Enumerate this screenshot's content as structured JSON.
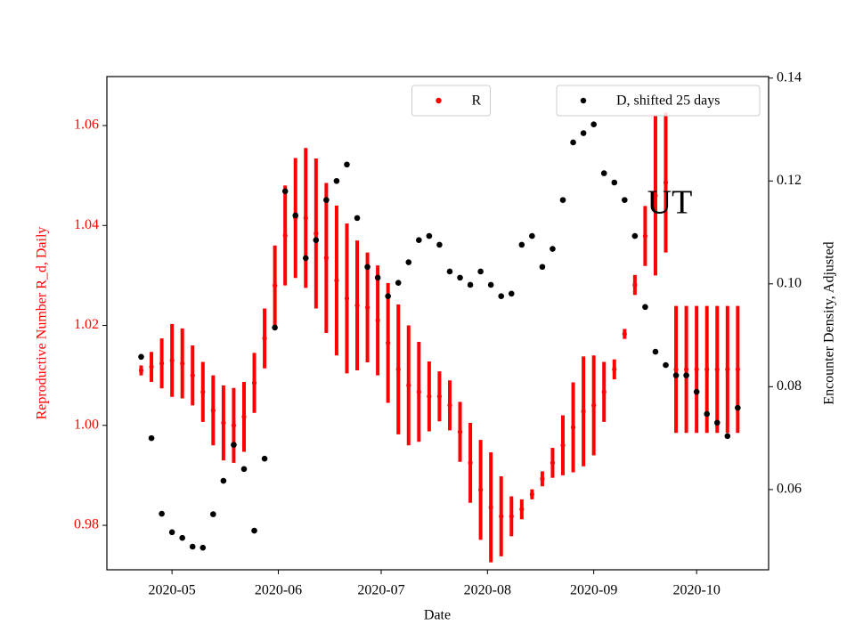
{
  "chart_data": {
    "type": "errorbar_scatter",
    "annotation": "UT",
    "xlabel": "Date",
    "ylabel": "Reproductive Number R_d, Daily",
    "y2label": "Encounter Density, Adjusted",
    "xlim": [
      "2020-04-12",
      "2020-10-22"
    ],
    "xticks": [
      {
        "value": "2020-05-01",
        "label": "2020-05"
      },
      {
        "value": "2020-06-01",
        "label": "2020-06"
      },
      {
        "value": "2020-07-01",
        "label": "2020-07"
      },
      {
        "value": "2020-08-01",
        "label": "2020-08"
      },
      {
        "value": "2020-09-01",
        "label": "2020-09"
      },
      {
        "value": "2020-10-01",
        "label": "2020-10"
      }
    ],
    "ylim": [
      0.9711,
      1.0698
    ],
    "yticks": [
      0.98,
      {
        "value": 1,
        "label": "1.00"
      },
      1.02,
      1.04,
      1.06
    ],
    "y2lim": [
      0.0444,
      0.1403
    ],
    "y2ticks": [
      0.06,
      0.08,
      {
        "value": 0.1,
        "label": "0.10"
      },
      0.12,
      0.14
    ],
    "legend_loc": "upper center",
    "legend2_loc": "upper right",
    "x": [
      "2020-04-22",
      "2020-04-25",
      "2020-04-28",
      "2020-05-01",
      "2020-05-04",
      "2020-05-07",
      "2020-05-10",
      "2020-05-13",
      "2020-05-16",
      "2020-05-19",
      "2020-05-22",
      "2020-05-25",
      "2020-05-28",
      "2020-05-31",
      "2020-06-03",
      "2020-06-06",
      "2020-06-09",
      "2020-06-12",
      "2020-06-15",
      "2020-06-18",
      "2020-06-21",
      "2020-06-24",
      "2020-06-27",
      "2020-06-30",
      "2020-07-03",
      "2020-07-06",
      "2020-07-09",
      "2020-07-12",
      "2020-07-15",
      "2020-07-18",
      "2020-07-21",
      "2020-07-24",
      "2020-07-27",
      "2020-07-30",
      "2020-08-02",
      "2020-08-05",
      "2020-08-08",
      "2020-08-11",
      "2020-08-14",
      "2020-08-17",
      "2020-08-20",
      "2020-08-23",
      "2020-08-26",
      "2020-08-29",
      "2020-09-01",
      "2020-09-04",
      "2020-09-07",
      "2020-09-10",
      "2020-09-13",
      "2020-09-16",
      "2020-09-19",
      "2020-09-22",
      "2020-09-25",
      "2020-09-28",
      "2020-10-01",
      "2020-10-04",
      "2020-10-07",
      "2020-10-10",
      "2020-10-13"
    ],
    "series": [
      {
        "name": "R",
        "color": "#ff0000",
        "values": [
          1.011,
          1.0117,
          1.0124,
          1.013,
          1.0124,
          1.01,
          1.0067,
          1.003,
          1.0005,
          1.0,
          1.0017,
          1.0085,
          1.0174,
          1.028,
          1.038,
          1.0415,
          1.0415,
          1.0384,
          1.0335,
          1.029,
          1.0254,
          1.024,
          1.0236,
          1.021,
          1.0165,
          1.0112,
          1.008,
          1.0067,
          1.0058,
          1.0058,
          1.004,
          0.9987,
          0.9925,
          0.9871,
          0.9836,
          0.9818,
          0.9818,
          0.9832,
          0.9862,
          0.9893,
          0.9925,
          0.996,
          0.9996,
          1.0028,
          1.004,
          1.0067,
          1.0112,
          1.0183,
          1.0281,
          1.0379,
          1.046,
          1.0486,
          1.0112,
          1.0112,
          1.0112,
          1.0112,
          1.0112,
          1.0112,
          1.0112
        ],
        "errors": [
          0.001,
          0.003,
          0.005,
          0.0073,
          0.007,
          0.006,
          0.006,
          0.007,
          0.0075,
          0.0075,
          0.007,
          0.006,
          0.006,
          0.008,
          0.01,
          0.012,
          0.014,
          0.015,
          0.015,
          0.015,
          0.015,
          0.013,
          0.011,
          0.011,
          0.012,
          0.013,
          0.012,
          0.01,
          0.007,
          0.005,
          0.005,
          0.006,
          0.008,
          0.01,
          0.011,
          0.008,
          0.004,
          0.002,
          0.001,
          0.0015,
          0.003,
          0.006,
          0.009,
          0.011,
          0.01,
          0.006,
          0.002,
          0.001,
          0.002,
          0.006,
          0.016,
          0.014,
          0.0127,
          0.0127,
          0.0127,
          0.0127,
          0.0127,
          0.0127,
          0.0127
        ]
      },
      {
        "name": "D, shifted 25 days",
        "color": "#000000",
        "axis": "y2",
        "values": [
          0.0858,
          0.07,
          0.0553,
          0.0517,
          0.0506,
          0.0489,
          0.0487,
          0.0552,
          0.0617,
          0.0687,
          0.064,
          0.052,
          0.066,
          0.0915,
          0.118,
          0.1133,
          0.105,
          0.1085,
          0.1163,
          0.12,
          0.1232,
          0.1128,
          0.1033,
          0.1012,
          0.0976,
          0.1002,
          0.1042,
          0.1085,
          0.1093,
          0.1076,
          0.1024,
          0.1012,
          0.0998,
          0.1024,
          0.0998,
          0.0976,
          0.0981,
          0.1076,
          0.1093,
          0.1033,
          0.1068,
          0.1163,
          0.1275,
          0.1293,
          0.131,
          0.1215,
          0.1197,
          0.1163,
          0.1093,
          0.0955,
          0.0868,
          0.0842,
          0.0822,
          0.0822,
          0.079,
          0.0747,
          0.073,
          0.0704,
          0.0759
        ]
      }
    ]
  }
}
